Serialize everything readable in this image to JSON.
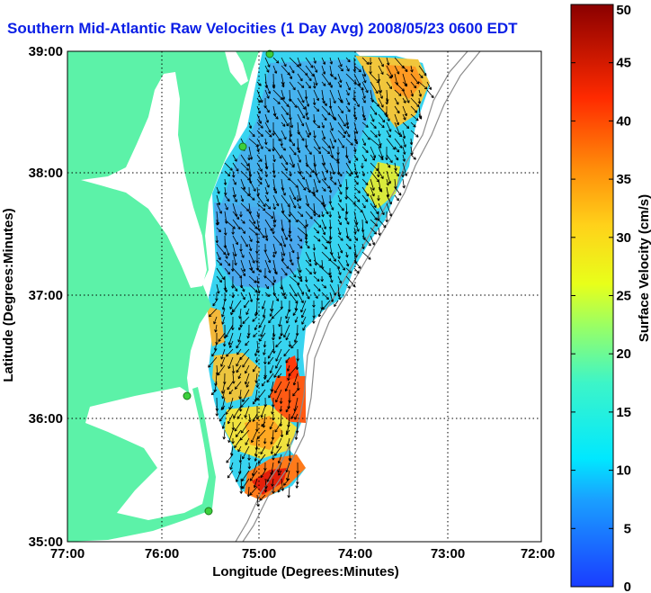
{
  "title": "Southern Mid-Atlantic Raw Velocities (1 Day Avg) 2008/05/23 0600 EDT",
  "axes": {
    "xlabel": "Longitude (Degrees:Minutes)",
    "ylabel": "Latitude (Degrees:Minutes)",
    "x_ticks": [
      "77:00",
      "76:00",
      "75:00",
      "74:00",
      "73:00",
      "72:00"
    ],
    "y_ticks": [
      "39:00",
      "38:00",
      "37:00",
      "36:00",
      "35:00"
    ]
  },
  "colorbar": {
    "label": "Surface Velocity (cm/s)",
    "ticks": [
      "0",
      "5",
      "10",
      "15",
      "20",
      "25",
      "30",
      "35",
      "40",
      "45",
      "50"
    ],
    "min": 0,
    "max": 50,
    "colormap": "jet"
  },
  "colors": {
    "land": "#5cf2a8",
    "title": "#0a1ee6",
    "station": "#3cd03c",
    "vector": "#000000"
  },
  "grid": "dotted"
}
